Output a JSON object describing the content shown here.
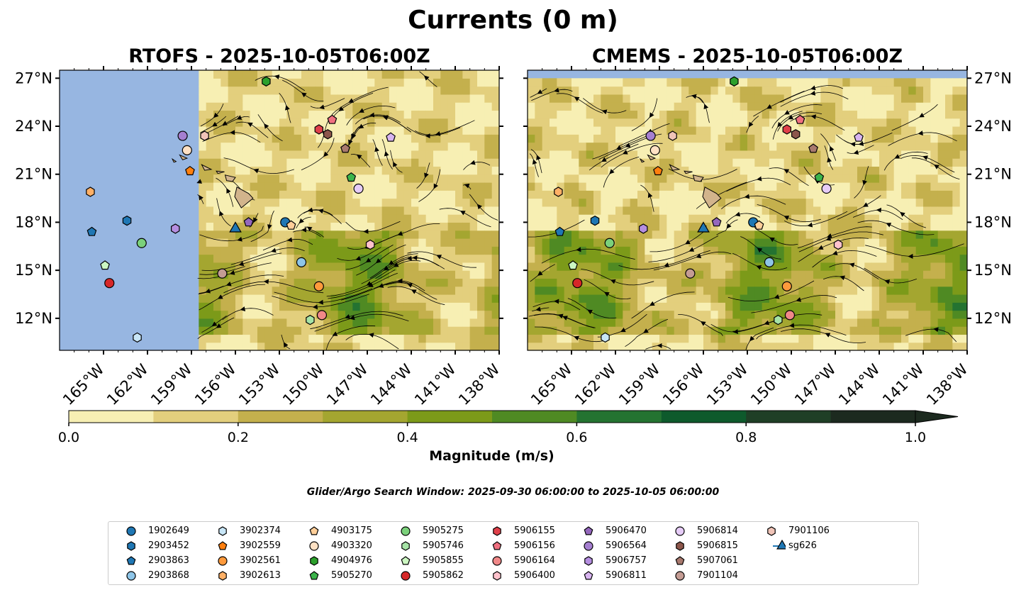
{
  "figure": {
    "title": "Currents (0 m)",
    "window_note": "Glider/Argo Search Window: 2025-09-30 06:00:00 to 2025-10-05 06:00:00"
  },
  "maps": {
    "left": {
      "title": "RTOFS - 2025-10-05T06:00Z"
    },
    "right": {
      "title": "CMEMS - 2025-10-05T06:00Z"
    }
  },
  "colors": {
    "ocean_nodata": "#97b6e1",
    "land": "#d2b48c",
    "colormap": [
      "#f7efb3",
      "#e3cf7d",
      "#c4b04d",
      "#a4a630",
      "#7c9a19",
      "#4f8a23",
      "#247331",
      "#0e5a2c",
      "#1f3f26",
      "#1c2a1f"
    ]
  },
  "colorbar": {
    "label": "Magnitude (m/s)",
    "ticks": [
      "0.0",
      "0.2",
      "0.4",
      "0.6",
      "0.8",
      "1.0"
    ],
    "levels": [
      0.0,
      0.1,
      0.2,
      0.3,
      0.4,
      0.5,
      0.6,
      0.7,
      0.8,
      0.9,
      1.0
    ],
    "extend": "max"
  },
  "chart_data": {
    "type": "map",
    "lon_range": [
      -168,
      -138
    ],
    "lat_range": [
      10,
      27.5
    ],
    "lon_ticks": [
      -165,
      -162,
      -159,
      -156,
      -153,
      -150,
      -147,
      -144,
      -141,
      -138
    ],
    "lat_ticks": [
      12,
      15,
      18,
      21,
      24,
      27
    ],
    "lon_tick_labels": [
      "165°W",
      "162°W",
      "159°W",
      "156°W",
      "153°W",
      "150°W",
      "147°W",
      "144°W",
      "141°W",
      "138°W"
    ],
    "lat_tick_labels": [
      "12°N",
      "15°N",
      "18°N",
      "21°N",
      "24°N",
      "27°N"
    ],
    "variable": "surface current magnitude (m/s)",
    "rtofs_coverage_west_edge_lon": -158.6,
    "floats": [
      {
        "id": "1902649",
        "marker": "circle",
        "color": "#1f77b4",
        "lon": -152.6,
        "lat": 18.0
      },
      {
        "id": "2903452",
        "marker": "hexagon",
        "color": "#1f77b4",
        "lon": -163.4,
        "lat": 18.1
      },
      {
        "id": "2903863",
        "marker": "pentagon",
        "color": "#1f77b4",
        "lon": -165.8,
        "lat": 17.4
      },
      {
        "id": "2903868",
        "marker": "circle",
        "color": "#8ec5e8",
        "lon": -151.5,
        "lat": 15.5
      },
      {
        "id": "3902374",
        "marker": "hexagon",
        "color": "#c8e6f7",
        "lon": -162.7,
        "lat": 10.8
      },
      {
        "id": "3902559",
        "marker": "pentagon",
        "color": "#ff7f0e",
        "lon": -159.1,
        "lat": 21.2
      },
      {
        "id": "3902561",
        "marker": "circle",
        "color": "#ff9a3c",
        "lon": -150.3,
        "lat": 14.0
      },
      {
        "id": "3902613",
        "marker": "hexagon",
        "color": "#ffb066",
        "lon": -165.9,
        "lat": 19.9
      },
      {
        "id": "4903175",
        "marker": "pentagon",
        "color": "#ffcf99",
        "lon": -152.2,
        "lat": 17.8
      },
      {
        "id": "4903320",
        "marker": "circle",
        "color": "#ffe1c4",
        "lon": -159.3,
        "lat": 22.5
      },
      {
        "id": "4904976",
        "marker": "hexagon",
        "color": "#2ca02c",
        "lon": -153.9,
        "lat": 26.8
      },
      {
        "id": "5905270",
        "marker": "pentagon",
        "color": "#3cb44b",
        "lon": -148.1,
        "lat": 20.8
      },
      {
        "id": "5905275",
        "marker": "circle",
        "color": "#7bd17b",
        "lon": -162.4,
        "lat": 16.7
      },
      {
        "id": "5905746",
        "marker": "hexagon",
        "color": "#a6e3a6",
        "lon": -150.9,
        "lat": 11.9
      },
      {
        "id": "5905855",
        "marker": "pentagon",
        "color": "#ccf7c2",
        "lon": -164.9,
        "lat": 15.3
      },
      {
        "id": "5905862",
        "marker": "circle",
        "color": "#d62728",
        "lon": -164.6,
        "lat": 14.2
      },
      {
        "id": "5906155",
        "marker": "hexagon",
        "color": "#e0404a",
        "lon": -150.3,
        "lat": 23.8
      },
      {
        "id": "5906156",
        "marker": "pentagon",
        "color": "#f07080",
        "lon": -149.4,
        "lat": 24.4
      },
      {
        "id": "5906164",
        "marker": "circle",
        "color": "#f08888",
        "lon": -150.1,
        "lat": 12.2
      },
      {
        "id": "5906400",
        "marker": "hexagon",
        "color": "#ffc2cc",
        "lon": -146.8,
        "lat": 16.6
      },
      {
        "id": "5906470",
        "marker": "pentagon",
        "color": "#9467bd",
        "lon": -155.1,
        "lat": 18.0
      },
      {
        "id": "5906564",
        "marker": "circle",
        "color": "#a57fd0",
        "lon": -159.6,
        "lat": 23.4
      },
      {
        "id": "5906757",
        "marker": "hexagon",
        "color": "#b58ee0",
        "lon": -160.1,
        "lat": 17.6
      },
      {
        "id": "5906811",
        "marker": "pentagon",
        "color": "#d8b4f0",
        "lon": -145.4,
        "lat": 23.3
      },
      {
        "id": "5906814",
        "marker": "circle",
        "color": "#e6ccf7",
        "lon": -147.6,
        "lat": 20.1
      },
      {
        "id": "5906815",
        "marker": "hexagon",
        "color": "#8c564b",
        "lon": -149.7,
        "lat": 23.5
      },
      {
        "id": "5907061",
        "marker": "pentagon",
        "color": "#a8796e",
        "lon": -148.5,
        "lat": 22.6
      },
      {
        "id": "7901104",
        "marker": "circle",
        "color": "#c49c94",
        "lon": -156.9,
        "lat": 14.8
      },
      {
        "id": "7901106",
        "marker": "hexagon",
        "color": "#f0c4b8",
        "lon": -158.1,
        "lat": 23.4
      }
    ],
    "gliders": [
      {
        "id": "sg626",
        "marker": "triangle",
        "color": "#1f77b4",
        "lon": -156.0,
        "lat": 17.6
      }
    ]
  }
}
